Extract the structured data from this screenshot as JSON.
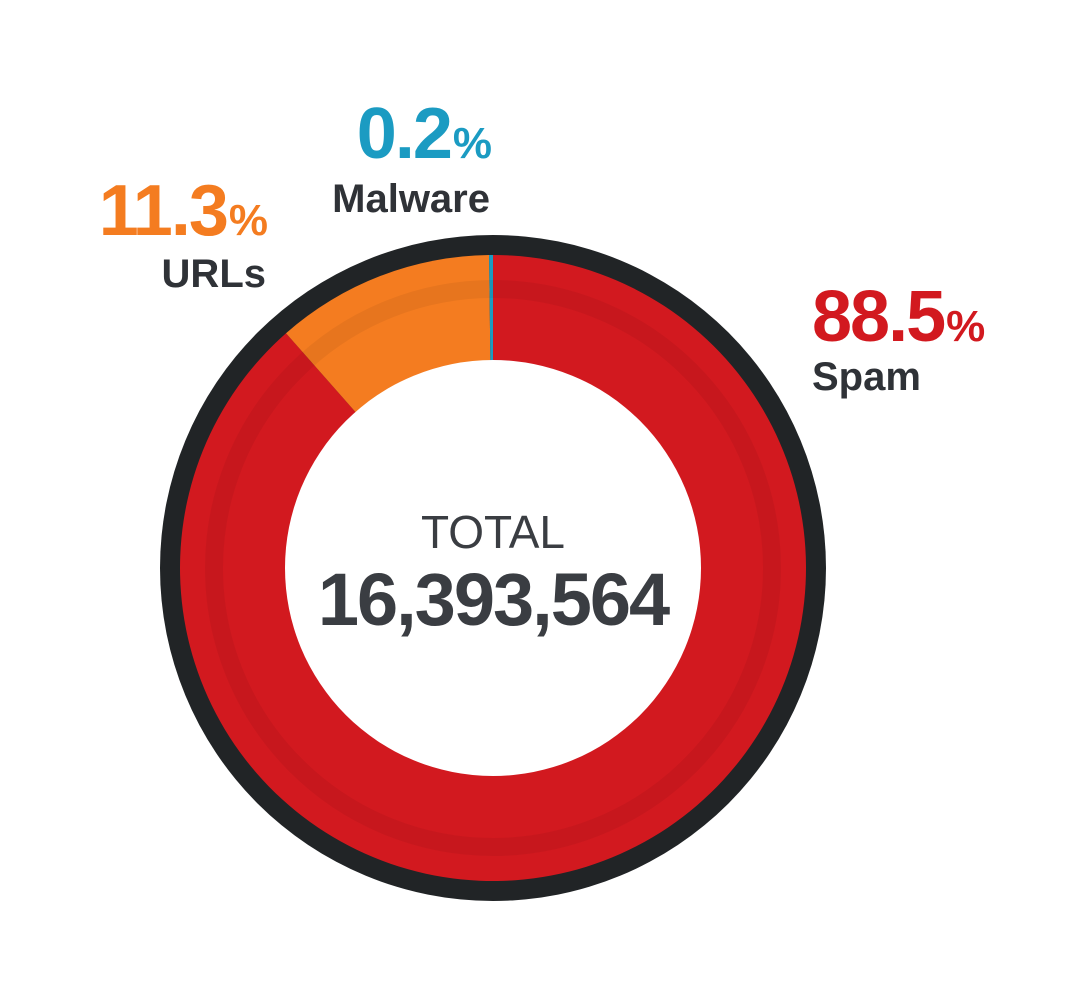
{
  "chart_data": {
    "type": "pie",
    "variant": "donut",
    "categories": [
      "Spam",
      "URLs",
      "Malware"
    ],
    "values": [
      88.5,
      11.3,
      0.2
    ],
    "value_labels": [
      "88.5",
      "11.3",
      "0.2"
    ],
    "unit": "%",
    "colors": [
      "#d2191f",
      "#f47c20",
      "#1b9bc2"
    ],
    "ring_color": "#212426",
    "center": {
      "label": "TOTAL",
      "value": "16,393,564"
    }
  }
}
